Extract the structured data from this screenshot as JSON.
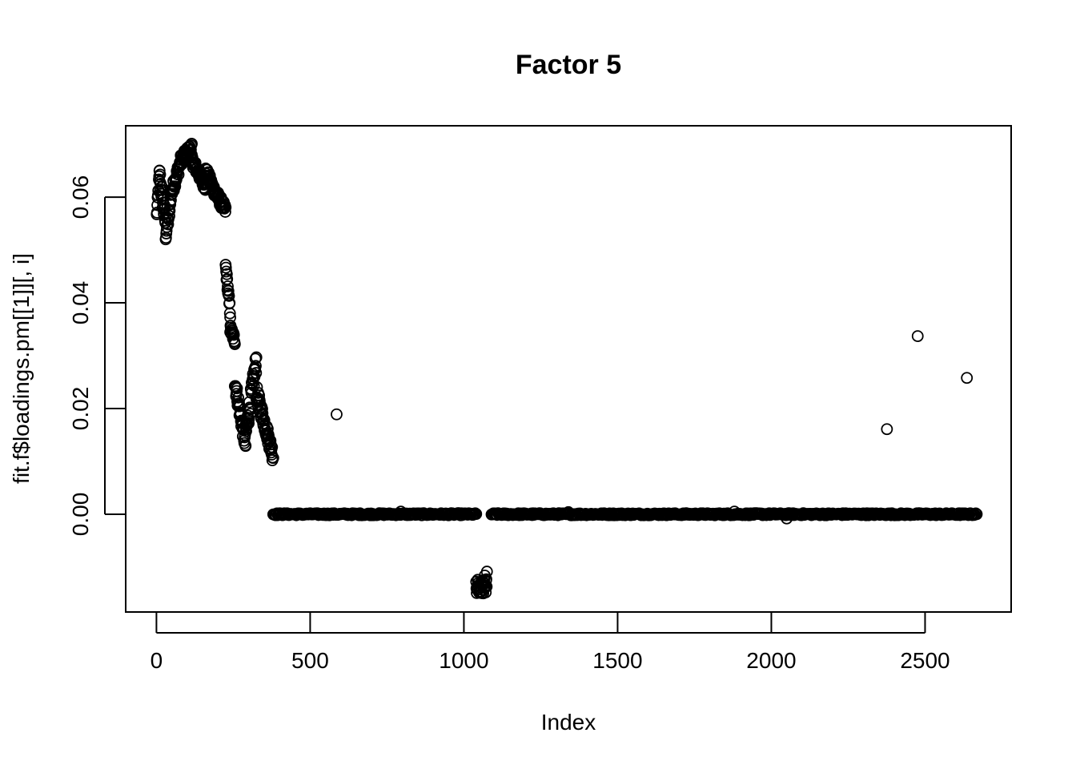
{
  "chart_data": {
    "type": "scatter",
    "title": "Factor 5",
    "xlabel": "Index",
    "ylabel": "fit.f$loadings.pm[[1]][, i]",
    "xlim": [
      -100,
      2780
    ],
    "ylim": [
      -0.0185,
      0.0735
    ],
    "xticks": [
      0,
      500,
      1000,
      1500,
      2000,
      2500
    ],
    "yticks": [
      0.0,
      0.02,
      0.04,
      0.06
    ],
    "ytick_labels": [
      "0.00",
      "0.02",
      "0.04",
      "0.06"
    ],
    "grid": false,
    "point_style": "open-circle",
    "segments": [
      {
        "x_start": 1,
        "x_end": 10,
        "y_start": 0.0565,
        "y_end": 0.0645,
        "jitter": 0.0008
      },
      {
        "x_start": 10,
        "x_end": 30,
        "y_start": 0.064,
        "y_end": 0.055,
        "jitter": 0.002
      },
      {
        "x_start": 30,
        "x_end": 45,
        "y_start": 0.053,
        "y_end": 0.058,
        "jitter": 0.0015
      },
      {
        "x_start": 45,
        "x_end": 80,
        "y_start": 0.06,
        "y_end": 0.067,
        "jitter": 0.0012
      },
      {
        "x_start": 80,
        "x_end": 115,
        "y_start": 0.067,
        "y_end": 0.0695,
        "jitter": 0.001
      },
      {
        "x_start": 115,
        "x_end": 160,
        "y_start": 0.067,
        "y_end": 0.062,
        "jitter": 0.001
      },
      {
        "x_start": 160,
        "x_end": 190,
        "y_start": 0.065,
        "y_end": 0.061,
        "jitter": 0.001
      },
      {
        "x_start": 190,
        "x_end": 225,
        "y_start": 0.061,
        "y_end": 0.0575,
        "jitter": 0.001
      },
      {
        "x_start": 225,
        "x_end": 240,
        "y_start": 0.047,
        "y_end": 0.038,
        "jitter": 0.001
      },
      {
        "x_start": 240,
        "x_end": 255,
        "y_start": 0.035,
        "y_end": 0.033,
        "jitter": 0.001
      },
      {
        "x_start": 255,
        "x_end": 290,
        "y_start": 0.025,
        "y_end": 0.013,
        "jitter": 0.0015
      },
      {
        "x_start": 290,
        "x_end": 325,
        "y_start": 0.015,
        "y_end": 0.029,
        "jitter": 0.002
      },
      {
        "x_start": 325,
        "x_end": 380,
        "y_start": 0.023,
        "y_end": 0.011,
        "jitter": 0.0015
      }
    ],
    "flat_segments": [
      {
        "x_start": 380,
        "x_end": 1040,
        "y": 0.0,
        "jitter": 0.0002
      },
      {
        "x_start": 1090,
        "x_end": 2670,
        "y": 0.0,
        "jitter": 0.0002
      }
    ],
    "outliers": [
      {
        "x": 586,
        "y": 0.0189
      },
      {
        "x": 795,
        "y": 0.0005
      },
      {
        "x": 1340,
        "y": 0.0004
      },
      {
        "x": 1880,
        "y": 0.0005
      },
      {
        "x": 2050,
        "y": -0.0008
      },
      {
        "x": 2376,
        "y": 0.0161
      },
      {
        "x": 2476,
        "y": 0.0337
      },
      {
        "x": 2636,
        "y": 0.0258
      }
    ],
    "negative_cluster": {
      "x_start": 1040,
      "x_end": 1075,
      "y_min": -0.015,
      "y_max": -0.0105
    }
  }
}
